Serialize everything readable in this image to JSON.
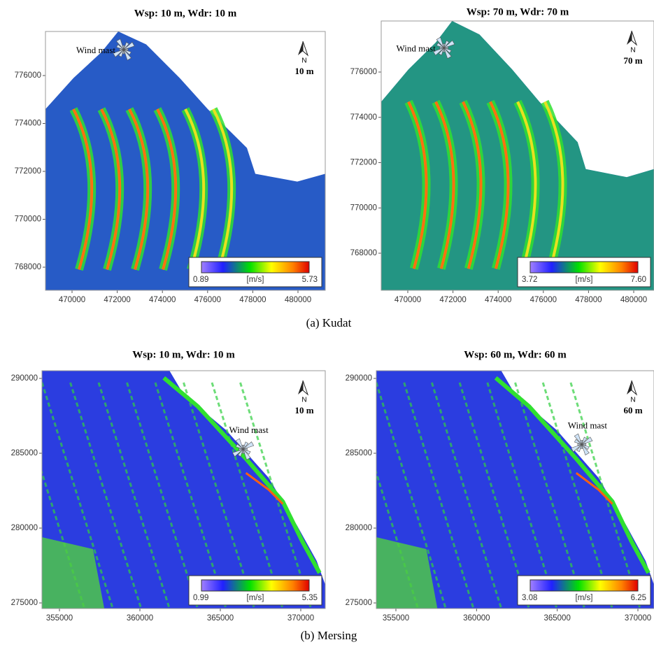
{
  "panels": [
    {
      "title": "Wsp: 10 m, Wdr: 10 m",
      "wind_mast": "Wind mast",
      "north": "N",
      "height_label": "10 m",
      "xticks": [
        470000,
        472000,
        474000,
        476000,
        478000,
        480000
      ],
      "yticks": [
        776000,
        774000,
        772000,
        770000,
        768000
      ],
      "colorbar": {
        "min": "0.89",
        "unit": "[m/s]",
        "max": "5.73"
      }
    },
    {
      "title": "Wsp: 70 m, Wdr: 70 m",
      "wind_mast": "Wind mast",
      "north": "N",
      "height_label": "70 m",
      "xticks": [
        470000,
        472000,
        474000,
        476000,
        478000,
        480000
      ],
      "yticks": [
        776000,
        774000,
        772000,
        770000,
        768000
      ],
      "colorbar": {
        "min": "3.72",
        "unit": "[m/s]",
        "max": "7.60"
      }
    },
    {
      "title": "Wsp: 10 m, Wdr: 10 m",
      "wind_mast": "Wind mast",
      "north": "N",
      "height_label": "10 m",
      "xticks": [
        355000,
        360000,
        365000,
        370000
      ],
      "yticks": [
        290000,
        285000,
        280000,
        275000
      ],
      "colorbar": {
        "min": "0.99",
        "unit": "[m/s]",
        "max": "5.35"
      }
    },
    {
      "title": "Wsp: 60 m, Wdr: 60 m",
      "wind_mast": "Wind mast",
      "north": "N",
      "height_label": "60 m",
      "xticks": [
        355000,
        360000,
        365000,
        370000
      ],
      "yticks": [
        290000,
        285000,
        280000,
        275000
      ],
      "colorbar": {
        "min": "3.08",
        "unit": "[m/s]",
        "max": "6.25"
      }
    }
  ],
  "captions": [
    "(a) Kudat",
    "(b) Mersing"
  ]
}
